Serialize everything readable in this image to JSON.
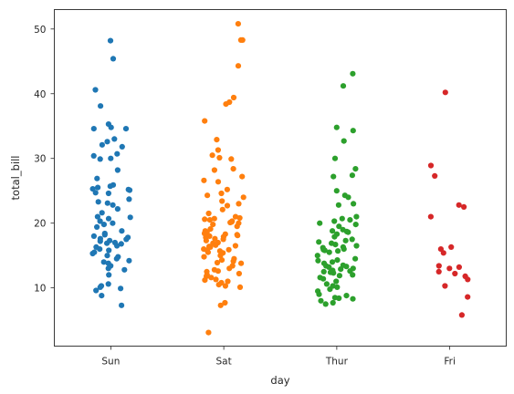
{
  "chart_data": {
    "type": "scatter",
    "style": "strip",
    "title": "",
    "xlabel": "day",
    "ylabel": "total_bill",
    "categories": [
      "Sun",
      "Sat",
      "Thur",
      "Fri"
    ],
    "ylim": [
      1,
      53
    ],
    "yticks": [
      10,
      20,
      30,
      40,
      50
    ],
    "grid": false,
    "legend": "none",
    "colors": [
      "#1f77b4",
      "#ff7f0e",
      "#2ca02c",
      "#d62728"
    ],
    "series": [
      {
        "category": "Sun",
        "values": [
          48.2,
          45.4,
          40.6,
          38.1,
          35.3,
          34.8,
          34.6,
          34.6,
          33.0,
          32.6,
          32.1,
          31.8,
          30.7,
          30.4,
          30.0,
          29.9,
          28.2,
          26.9,
          25.9,
          25.7,
          25.5,
          25.3,
          25.2,
          25.1,
          24.7,
          24.6,
          23.7,
          23.3,
          23.1,
          22.8,
          22.2,
          21.6,
          21.0,
          20.9,
          20.7,
          20.3,
          20.0,
          19.8,
          19.4,
          18.8,
          18.4,
          18.2,
          18.0,
          17.8,
          17.6,
          17.5,
          17.3,
          17.2,
          17.0,
          16.9,
          16.8,
          16.5,
          16.3,
          16.0,
          15.8,
          15.5,
          15.3,
          15.0,
          14.8,
          14.5,
          14.2,
          14.0,
          13.8,
          13.4,
          13.0,
          12.8,
          12.0,
          10.6,
          10.3,
          10.1,
          9.9,
          9.6,
          8.8,
          7.3
        ]
      },
      {
        "category": "Sat",
        "values": [
          50.8,
          48.3,
          48.3,
          44.3,
          39.4,
          38.7,
          38.4,
          35.8,
          32.9,
          31.3,
          30.5,
          30.1,
          29.9,
          28.4,
          28.2,
          27.2,
          26.6,
          26.4,
          25.2,
          24.6,
          24.3,
          24.0,
          23.4,
          23.0,
          22.7,
          22.1,
          21.5,
          21.0,
          20.8,
          20.7,
          20.6,
          20.5,
          20.3,
          20.2,
          20.1,
          20.0,
          19.8,
          19.5,
          19.1,
          18.8,
          18.6,
          18.4,
          18.3,
          18.2,
          18.1,
          18.0,
          17.9,
          17.8,
          17.6,
          17.5,
          17.3,
          17.0,
          16.9,
          16.6,
          16.5,
          16.4,
          16.3,
          16.0,
          15.9,
          15.8,
          15.7,
          15.5,
          15.4,
          15.0,
          14.8,
          14.5,
          14.3,
          14.1,
          13.9,
          13.8,
          13.4,
          13.0,
          12.8,
          12.6,
          12.5,
          12.2,
          12.0,
          11.8,
          11.6,
          11.3,
          11.2,
          11.0,
          10.8,
          10.5,
          10.3,
          10.1,
          7.7,
          7.3,
          3.1
        ]
      },
      {
        "category": "Thur",
        "values": [
          43.1,
          41.2,
          34.8,
          34.3,
          32.7,
          30.0,
          28.4,
          27.4,
          27.2,
          25.0,
          24.3,
          24.0,
          23.0,
          22.8,
          21.0,
          20.7,
          20.5,
          20.3,
          20.0,
          19.8,
          19.5,
          19.0,
          18.8,
          18.7,
          18.6,
          18.3,
          17.9,
          17.5,
          17.3,
          17.1,
          16.9,
          16.7,
          16.5,
          16.3,
          16.2,
          16.0,
          15.9,
          15.8,
          15.7,
          15.5,
          15.0,
          14.5,
          14.3,
          14.2,
          14.0,
          13.8,
          13.5,
          13.4,
          13.3,
          13.2,
          13.0,
          12.9,
          12.7,
          12.6,
          12.5,
          12.4,
          12.3,
          12.0,
          11.9,
          11.6,
          11.4,
          11.0,
          10.6,
          10.3,
          10.1,
          9.8,
          9.5,
          9.0,
          8.8,
          8.5,
          8.4,
          8.3,
          8.0,
          7.7,
          7.5
        ]
      },
      {
        "category": "Fri",
        "values": [
          40.2,
          28.9,
          27.3,
          22.8,
          22.5,
          21.0,
          16.3,
          16.0,
          15.4,
          13.4,
          13.2,
          13.0,
          12.5,
          12.2,
          11.8,
          11.3,
          10.3,
          8.6,
          5.8
        ]
      }
    ]
  }
}
